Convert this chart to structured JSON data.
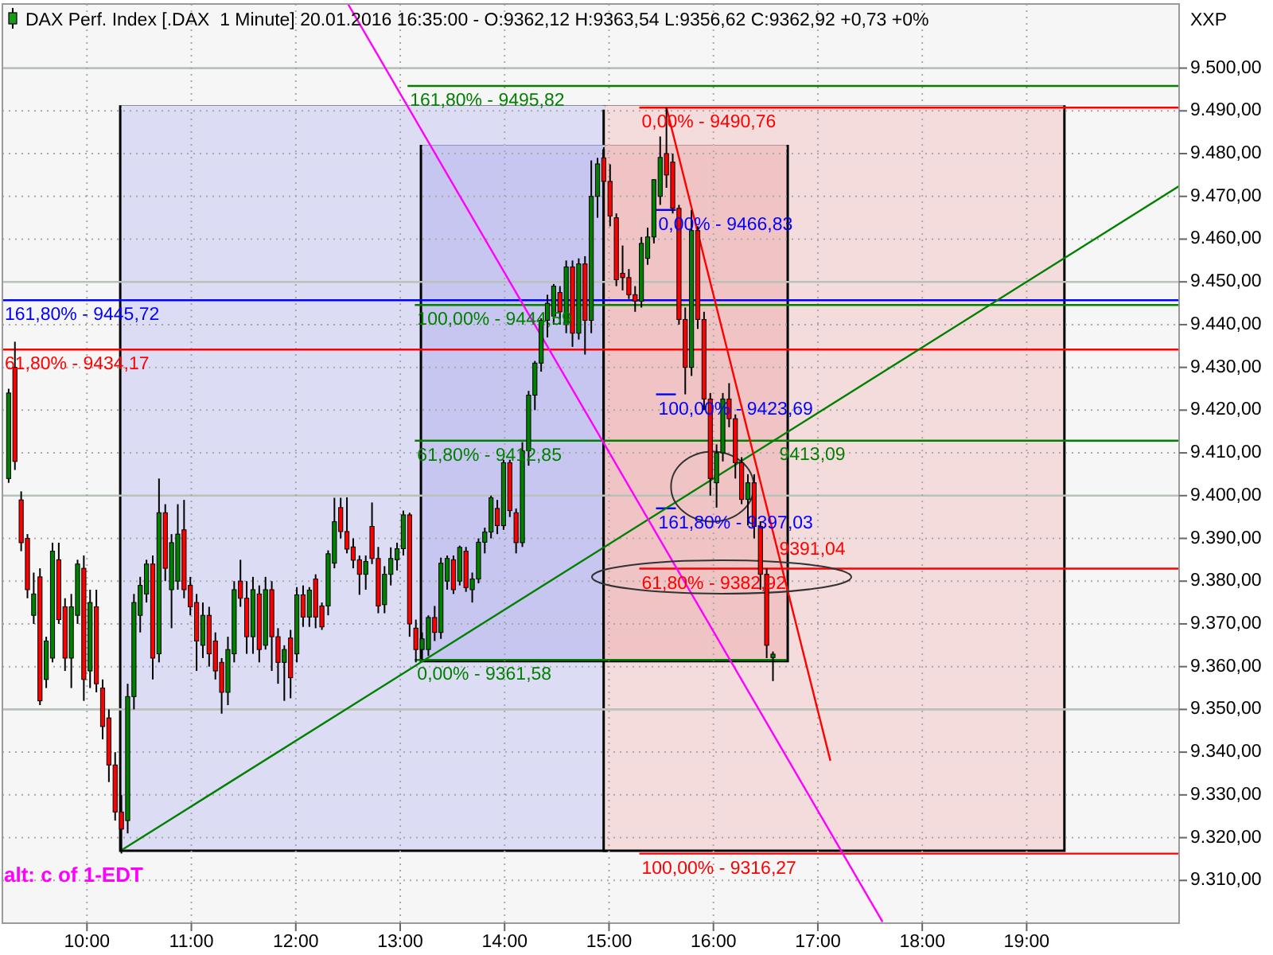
{
  "chart_data": {
    "type": "candlestick",
    "title": "DAX Perf. Index [.DAX  1 Minute] 20.01.2016 16:35:00 - O:9362,12 H:9363,54 L:9356,62 C:9362,92 +0,73 +0%",
    "ylabel": "XXP",
    "xlim": [
      9.19,
      20.46
    ],
    "ylim": [
      9300,
      9515
    ],
    "xticks": [
      {
        "value": 10,
        "label": "10:00"
      },
      {
        "value": 11,
        "label": "11:00"
      },
      {
        "value": 12,
        "label": "12:00"
      },
      {
        "value": 13,
        "label": "13:00"
      },
      {
        "value": 14,
        "label": "14:00"
      },
      {
        "value": 15,
        "label": "15:00"
      },
      {
        "value": 16,
        "label": "16:00"
      },
      {
        "value": 17,
        "label": "17:00"
      },
      {
        "value": 18,
        "label": "18:00"
      },
      {
        "value": 19,
        "label": "19:00"
      }
    ],
    "yticks": [
      {
        "value": 9310,
        "label": "9.310,00"
      },
      {
        "value": 9320,
        "label": "9.320,00"
      },
      {
        "value": 9330,
        "label": "9.330,00"
      },
      {
        "value": 9340,
        "label": "9.340,00"
      },
      {
        "value": 9350,
        "label": "9.350,00"
      },
      {
        "value": 9360,
        "label": "9.360,00"
      },
      {
        "value": 9370,
        "label": "9.370,00"
      },
      {
        "value": 9380,
        "label": "9.380,00"
      },
      {
        "value": 9390,
        "label": "9.390,00"
      },
      {
        "value": 9400,
        "label": "9.400,00"
      },
      {
        "value": 9410,
        "label": "9.410,00"
      },
      {
        "value": 9420,
        "label": "9.420,00"
      },
      {
        "value": 9430,
        "label": "9.430,00"
      },
      {
        "value": 9440,
        "label": "9.440,00"
      },
      {
        "value": 9450,
        "label": "9.450,00"
      },
      {
        "value": 9460,
        "label": "9.460,00"
      },
      {
        "value": 9470,
        "label": "9.470,00"
      },
      {
        "value": 9480,
        "label": "9.480,00"
      },
      {
        "value": 9490,
        "label": "9.490,00"
      },
      {
        "value": 9500,
        "label": "9.500,00"
      }
    ],
    "grid": true,
    "series": [
      {
        "type": "line",
        "color": "#dcdcf4",
        "x": [
          10.33,
          14.96
        ],
        "values": [
          9490.76,
          9490.76
        ],
        "lower": [
          9317.2,
          9317.2
        ],
        "upper": [
          9490.76,
          9490.76
        ]
      },
      {
        "type": "line",
        "color": "#c6c6f0",
        "x": [
          13.21,
          14.96
        ],
        "values": [
          9481.5,
          9481.5
        ],
        "lower": [
          9361.58,
          9361.58
        ],
        "upper": [
          9481.5,
          9481.5
        ]
      },
      {
        "type": "line",
        "color": "#f5dcdc",
        "x": [
          14.96,
          19.35
        ],
        "values": [
          9490.76,
          9490.76
        ],
        "lower": [
          9317.2,
          9317.2
        ],
        "upper": [
          9490.76,
          9490.76
        ]
      },
      {
        "type": "line",
        "color": "#f0c4c4",
        "x": [
          14.96,
          16.7
        ],
        "values": [
          9481.5,
          9481.5
        ],
        "lower": [
          9361.58,
          9361.58
        ],
        "upper": [
          9481.5,
          9481.5
        ]
      },
      {
        "type": "line",
        "name": "161,80% - 9495,82",
        "color": "#008000",
        "x": [
          13.07,
          20.46
        ],
        "values": [
          9495.82,
          9495.82
        ]
      },
      {
        "type": "line",
        "name": "0,00% - 9490,76",
        "color": "#ff0000",
        "x": [
          15.29,
          20.46
        ],
        "values": [
          9490.76,
          9490.76
        ]
      },
      {
        "type": "line",
        "name": "0,00% - 9466,83",
        "color": "#0000ff",
        "x": [
          15.45,
          15.64
        ],
        "values": [
          9466.83,
          9466.83
        ]
      },
      {
        "type": "line",
        "name": "161,80% - 9445,72",
        "color": "#0000ff",
        "x": [
          9.19,
          20.46
        ],
        "values": [
          9445.72,
          9445.72
        ]
      },
      {
        "type": "line",
        "name": "100,00% - 9444,59",
        "color": "#008000",
        "x": [
          13.14,
          20.46
        ],
        "values": [
          9444.59,
          9444.59
        ]
      },
      {
        "type": "line",
        "name": "61,80% - 9434,17",
        "color": "#ff0000",
        "x": [
          9.19,
          20.46
        ],
        "values": [
          9434.17,
          9434.17
        ]
      },
      {
        "type": "line",
        "name": "100,00% - 9423,69",
        "color": "#0000ff",
        "x": [
          15.45,
          15.64
        ],
        "values": [
          9423.69,
          9423.69
        ]
      },
      {
        "type": "line",
        "name": "61,80% - 9412,85",
        "color": "#008000",
        "x": [
          13.14,
          20.46
        ],
        "values": [
          9412.85,
          9412.85
        ]
      },
      {
        "type": "line",
        "name": "161,80% - 9397,03",
        "color": "#0000ff",
        "x": [
          15.45,
          15.64
        ],
        "values": [
          9397.03,
          9397.03
        ]
      },
      {
        "type": "line",
        "name": "61,80% - 9382,92",
        "color": "#ff0000",
        "x": [
          15.29,
          20.46
        ],
        "values": [
          9382.92,
          9382.92
        ]
      },
      {
        "type": "line",
        "name": "0,00% - 9361,58",
        "color": "#008000",
        "x": [
          13.14,
          16.7
        ],
        "values": [
          9361.58,
          9361.58
        ]
      },
      {
        "type": "line",
        "name": "100,00% - 9316,27",
        "color": "#ff0000",
        "x": [
          15.29,
          20.46
        ],
        "values": [
          9316.27,
          9316.27
        ]
      },
      {
        "type": "line",
        "color": "#008000",
        "x": [
          10.34,
          20.46
        ],
        "values": [
          9317.2,
          9472.4
        ]
      },
      {
        "type": "line",
        "color": "#ff00ff",
        "x": [
          12.5,
          17.62
        ],
        "values": [
          9515,
          9300.3
        ]
      },
      {
        "type": "line",
        "color": "#ff0000",
        "x": [
          15.55,
          17.12
        ],
        "values": [
          9490.76,
          9338
        ]
      },
      {
        "x": [
          9.25,
          9.31,
          9.37,
          9.43,
          9.49,
          9.55,
          9.61,
          9.67,
          9.73,
          9.79,
          9.85,
          9.91,
          9.97,
          10.03,
          10.09,
          10.15,
          10.21,
          10.27,
          10.33,
          10.39,
          10.45,
          10.51,
          10.57,
          10.63,
          10.69,
          10.75,
          10.81,
          10.87,
          10.93,
          10.99,
          11.05,
          11.11,
          11.17,
          11.23,
          11.29,
          11.35,
          11.41,
          11.47,
          11.53,
          11.59,
          11.65,
          11.71,
          11.77,
          11.83,
          11.89,
          11.95,
          12.01,
          12.07,
          12.13,
          12.19,
          12.25,
          12.31,
          12.37,
          12.43,
          12.49,
          12.55,
          12.61,
          12.67,
          12.73,
          12.79,
          12.85,
          12.91,
          12.97,
          13.03,
          13.09,
          13.15,
          13.21,
          13.27,
          13.33,
          13.39,
          13.45,
          13.51,
          13.57,
          13.63,
          13.69,
          13.75,
          13.81,
          13.87,
          13.93,
          13.99,
          14.05,
          14.11,
          14.17,
          14.23,
          14.29,
          14.35,
          14.41,
          14.47,
          14.53,
          14.59,
          14.65,
          14.71,
          14.77,
          14.83,
          14.89,
          14.95,
          15.01,
          15.07,
          15.13,
          15.19,
          15.25,
          15.31,
          15.37,
          15.43,
          15.49,
          15.55,
          15.61,
          15.67,
          15.73,
          15.79,
          15.85,
          15.91,
          15.97,
          16.03,
          16.09,
          16.15,
          16.21,
          16.27,
          16.33,
          16.39,
          16.45,
          16.51,
          16.57
        ],
        "ohlc": [
          [
            9404,
            9425,
            9403,
            9424
          ],
          [
            9430,
            9436,
            9406,
            9408
          ],
          [
            9399,
            9401,
            9387,
            9389
          ],
          [
            9390,
            9391,
            9376,
            9378
          ],
          [
            9372,
            9382,
            9370,
            9377
          ],
          [
            9381,
            9383,
            9351,
            9352
          ],
          [
            9357,
            9367,
            9355,
            9366
          ],
          [
            9362,
            9389,
            9361,
            9387
          ],
          [
            9385,
            9389,
            9370,
            9371
          ],
          [
            9374,
            9376,
            9359,
            9362
          ],
          [
            9362,
            9377,
            9355,
            9374
          ],
          [
            9372,
            9385,
            9370,
            9384
          ],
          [
            9383,
            9386,
            9352,
            9357
          ],
          [
            9359,
            9378,
            9355,
            9375
          ],
          [
            9374,
            9378,
            9354,
            9356
          ],
          [
            9355,
            9357,
            9343,
            9346
          ],
          [
            9348,
            9350,
            9333,
            9337
          ],
          [
            9337,
            9340,
            9324,
            9326
          ],
          [
            9326,
            9330,
            9316.3,
            9322
          ],
          [
            9324,
            9356,
            9321,
            9353
          ],
          [
            9353,
            9377,
            9350,
            9375
          ],
          [
            9372,
            9381,
            9368,
            9379
          ],
          [
            9377,
            9385,
            9375,
            9384
          ],
          [
            9384,
            9386,
            9357,
            9362
          ],
          [
            9363,
            9404,
            9361,
            9396
          ],
          [
            9396,
            9398,
            9380,
            9383
          ],
          [
            9378,
            9391,
            9369,
            9389
          ],
          [
            9380,
            9398,
            9378,
            9391
          ],
          [
            9392,
            9399,
            9376,
            9378
          ],
          [
            9379,
            9381,
            9372,
            9374
          ],
          [
            9375,
            9377,
            9359,
            9366
          ],
          [
            9365,
            9375,
            9362,
            9372
          ],
          [
            9372,
            9374,
            9360,
            9363
          ],
          [
            9366,
            9368,
            9357,
            9359
          ],
          [
            9361,
            9362,
            9349,
            9354
          ],
          [
            9354,
            9367,
            9351,
            9364
          ],
          [
            9363,
            9380,
            9361,
            9378
          ],
          [
            9380,
            9385,
            9374,
            9376
          ],
          [
            9376,
            9380,
            9363,
            9367
          ],
          [
            9367,
            9381,
            9363,
            9378
          ],
          [
            9377,
            9379,
            9361,
            9364
          ],
          [
            9365,
            9381,
            9364,
            9378
          ],
          [
            9378,
            9380,
            9359,
            9367
          ],
          [
            9367,
            9369,
            9356,
            9361
          ],
          [
            9361,
            9365,
            9352,
            9364
          ],
          [
            9366.7,
            9368.6,
            9352.6,
            9357.4
          ],
          [
            9363,
            9378.6,
            9361,
            9376.8
          ],
          [
            9376.8,
            9379,
            9369.3,
            9371.6
          ],
          [
            9371.6,
            9378.6,
            9369.3,
            9377.9
          ],
          [
            9380.5,
            9381.6,
            9369,
            9371.6
          ],
          [
            9374.2,
            9375,
            9368.6,
            9369.3
          ],
          [
            9374.2,
            9387.2,
            9372,
            9386.4
          ],
          [
            9384.2,
            9399.5,
            9383,
            9393.9
          ],
          [
            9397.2,
            9399.5,
            9390,
            9391.6
          ],
          [
            9391.6,
            9399.6,
            9386.5,
            9387.5
          ],
          [
            9388,
            9390,
            9383,
            9384.9
          ],
          [
            9385,
            9386,
            9376.8,
            9381.6
          ],
          [
            9381.6,
            9386,
            9378,
            9384.6
          ],
          [
            9392.8,
            9398.4,
            9384,
            9385.3
          ],
          [
            9385.3,
            9388,
            9372.5,
            9374.2
          ],
          [
            9374.5,
            9383.5,
            9372.5,
            9381.6
          ],
          [
            9381.6,
            9387.9,
            9379,
            9385.3
          ],
          [
            9385,
            9389,
            9382.5,
            9387.6
          ],
          [
            9387.6,
            9396.5,
            9386,
            9395.5
          ],
          [
            9395.5,
            9396,
            9367,
            9370
          ],
          [
            9369,
            9371,
            9361,
            9364
          ],
          [
            9364,
            9368,
            9361.6,
            9366.5
          ],
          [
            9364,
            9372,
            9362.5,
            9371.5
          ],
          [
            9371.5,
            9374.2,
            9366,
            9368
          ],
          [
            9368,
            9385.5,
            9366.5,
            9384.2
          ],
          [
            9380,
            9386,
            9378,
            9385.3
          ],
          [
            9385,
            9386,
            9377,
            9378
          ],
          [
            9380,
            9388.3,
            9379,
            9387.9
          ],
          [
            9387,
            9388,
            9377.5,
            9378.5
          ],
          [
            9378,
            9382,
            9375,
            9380.5
          ],
          [
            9380.5,
            9390,
            9379.5,
            9389.1
          ],
          [
            9389.1,
            9392.5,
            9386.5,
            9391.5
          ],
          [
            9391.5,
            9400,
            9390,
            9399.5
          ],
          [
            9397,
            9399,
            9391,
            9393
          ],
          [
            9393,
            9408.4,
            9392,
            9407.7
          ],
          [
            9407.7,
            9408.4,
            9395,
            9396.5
          ],
          [
            9396,
            9397,
            9386.5,
            9389
          ],
          [
            9389,
            9412.5,
            9388,
            9410.5
          ],
          [
            9410.5,
            9424.5,
            9407,
            9423.5
          ],
          [
            9423.5,
            9431.5,
            9420,
            9431
          ],
          [
            9431,
            9441.5,
            9429,
            9441
          ],
          [
            9441,
            9447,
            9437,
            9445
          ],
          [
            9442,
            9449.5,
            9440,
            9449
          ],
          [
            9447.5,
            9449,
            9440,
            9443
          ],
          [
            9440,
            9455,
            9438,
            9453.5
          ],
          [
            9453.5,
            9455,
            9434.8,
            9438
          ],
          [
            9438,
            9455.5,
            9436.5,
            9454.2
          ],
          [
            9454.2,
            9456,
            9433,
            9441
          ],
          [
            9441,
            9478.4,
            9438,
            9470
          ],
          [
            9470,
            9479,
            9465,
            9477.6
          ],
          [
            9479,
            9481.5,
            9472,
            9473.5
          ],
          [
            9473.5,
            9477.5,
            9463,
            9465.4
          ],
          [
            9465,
            9466,
            9449,
            9450.5
          ],
          [
            9452,
            9458.5,
            9448,
            9451
          ],
          [
            9451,
            9453,
            9446,
            9447
          ],
          [
            9447,
            9449,
            9443,
            9445.5
          ],
          [
            9445.5,
            9460.5,
            9444,
            9459
          ],
          [
            9455.5,
            9462.7,
            9454,
            9460.5
          ],
          [
            9460.5,
            9474,
            9459,
            9473.9
          ],
          [
            9470,
            9484,
            9468,
            9479.1
          ],
          [
            9480,
            9490.76,
            9472,
            9475
          ],
          [
            9478,
            9480,
            9466,
            9467.2
          ],
          [
            9467.2,
            9468,
            9440,
            9441.2
          ],
          [
            9441.2,
            9444,
            9423.69,
            9430
          ],
          [
            9430,
            9466.83,
            9428,
            9462
          ],
          [
            9462,
            9463,
            9439,
            9441.2
          ],
          [
            9441.2,
            9443,
            9420,
            9422.6
          ],
          [
            9422.6,
            9424,
            9400,
            9404
          ],
          [
            9403,
            9412,
            9397.2,
            9410
          ],
          [
            9410,
            9424,
            9408,
            9422.6
          ],
          [
            9422.6,
            9426.3,
            9416,
            9418
          ],
          [
            9418,
            9419,
            9404,
            9407.7
          ],
          [
            9407.7,
            9409,
            9398,
            9399.1
          ],
          [
            9399.1,
            9405,
            9393,
            9403
          ],
          [
            9403,
            9405,
            9390,
            9392.8
          ],
          [
            9392.8,
            9394,
            9378,
            9381.6
          ],
          [
            9381.6,
            9383,
            9362,
            9365
          ],
          [
            9362.12,
            9363.54,
            9356.62,
            9362.92
          ]
        ],
        "colors": [
          "#008000",
          "#ff0000",
          "#ff0000",
          "#ff0000",
          "#008000",
          "#ff0000",
          "#008000",
          "#008000",
          "#ff0000",
          "#ff0000",
          "#008000",
          "#008000",
          "#ff0000",
          "#008000",
          "#ff0000",
          "#ff0000",
          "#ff0000",
          "#ff0000",
          "#ff0000",
          "#008000",
          "#008000",
          "#008000",
          "#008000",
          "#ff0000",
          "#008000",
          "#ff0000",
          "#008000",
          "#008000",
          "#ff0000",
          "#ff0000",
          "#ff0000",
          "#008000",
          "#ff0000",
          "#ff0000",
          "#ff0000",
          "#008000",
          "#008000",
          "#ff0000",
          "#ff0000",
          "#008000",
          "#ff0000",
          "#008000",
          "#ff0000",
          "#ff0000",
          "#008000",
          "#ff0000",
          "#008000",
          "#ff0000",
          "#008000",
          "#ff0000",
          "#ff0000",
          "#008000",
          "#008000",
          "#ff0000",
          "#ff0000",
          "#ff0000",
          "#ff0000",
          "#008000",
          "#ff0000",
          "#ff0000",
          "#008000",
          "#008000",
          "#008000",
          "#008000",
          "#ff0000",
          "#ff0000",
          "#008000",
          "#008000",
          "#ff0000",
          "#008000",
          "#008000",
          "#ff0000",
          "#008000",
          "#ff0000",
          "#008000",
          "#008000",
          "#008000",
          "#008000",
          "#ff0000",
          "#008000",
          "#ff0000",
          "#ff0000",
          "#008000",
          "#008000",
          "#008000",
          "#008000",
          "#008000",
          "#008000",
          "#ff0000",
          "#008000",
          "#ff0000",
          "#008000",
          "#ff0000",
          "#008000",
          "#008000",
          "#ff0000",
          "#ff0000",
          "#ff0000",
          "#ff0000",
          "#ff0000",
          "#ff0000",
          "#008000",
          "#008000",
          "#008000",
          "#008000",
          "#ff0000",
          "#ff0000",
          "#ff0000",
          "#ff0000",
          "#008000",
          "#ff0000",
          "#ff0000",
          "#ff0000",
          "#008000",
          "#008000",
          "#ff0000",
          "#ff0000",
          "#ff0000",
          "#008000",
          "#ff0000",
          "#ff0000",
          "#ff0000",
          "#008000"
        ]
      }
    ],
    "annotations": [
      {
        "text": "9413,09",
        "x": 16.57,
        "y": 9413.09
      },
      {
        "text": "9391,04",
        "x": 16.57,
        "y": 9391.04
      },
      "alt: c of 1-EDT"
    ]
  }
}
